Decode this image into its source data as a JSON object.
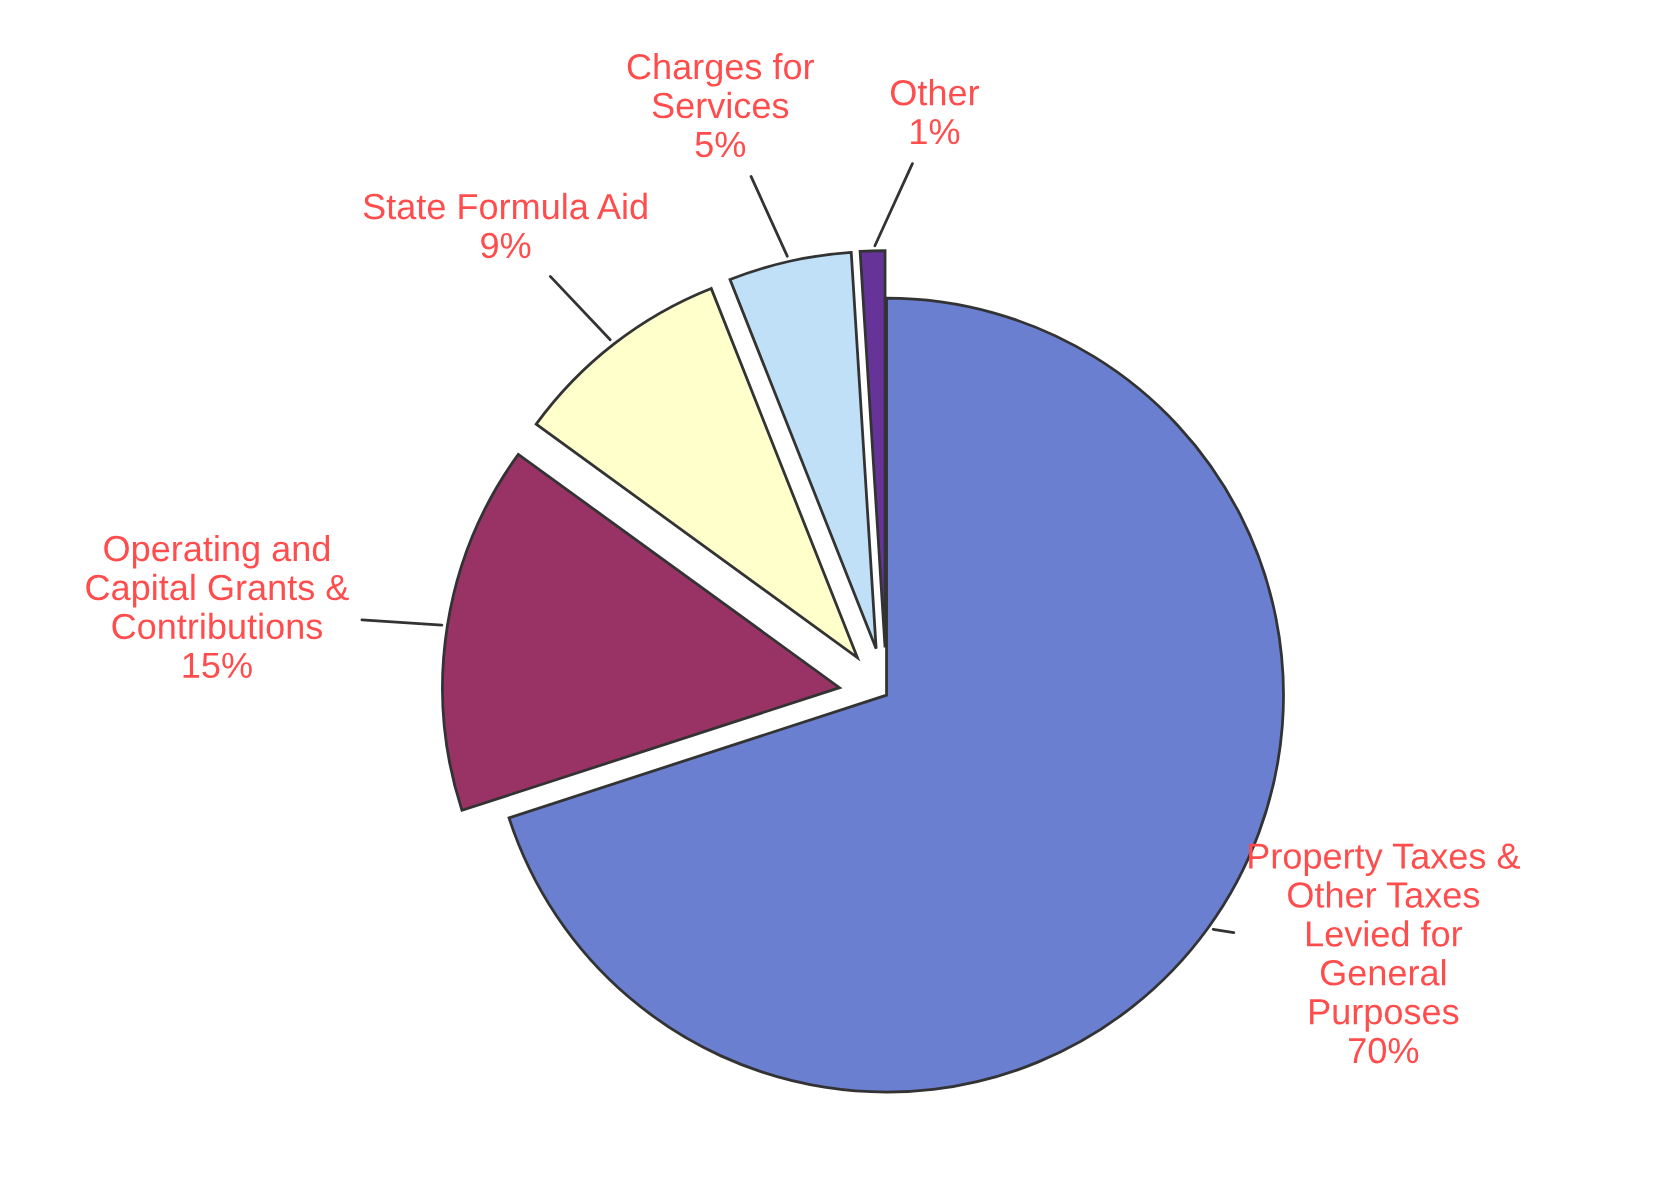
{
  "chart_data": {
    "type": "pie",
    "categories": [
      "Property Taxes &\nOther Taxes\nLevied for\nGeneral\nPurposes",
      "Operating and\nCapital Grants &\nContributions",
      "State Formula Aid",
      "Charges for\nServices",
      "Other"
    ],
    "values": [
      70,
      15,
      9,
      5,
      1
    ],
    "value_labels": [
      "70%",
      "15%",
      "9%",
      "5%",
      "1%"
    ],
    "colors": [
      "#6a7fd0",
      "#993366",
      "#ffffcc",
      "#bfe0f7",
      "#663399"
    ]
  }
}
